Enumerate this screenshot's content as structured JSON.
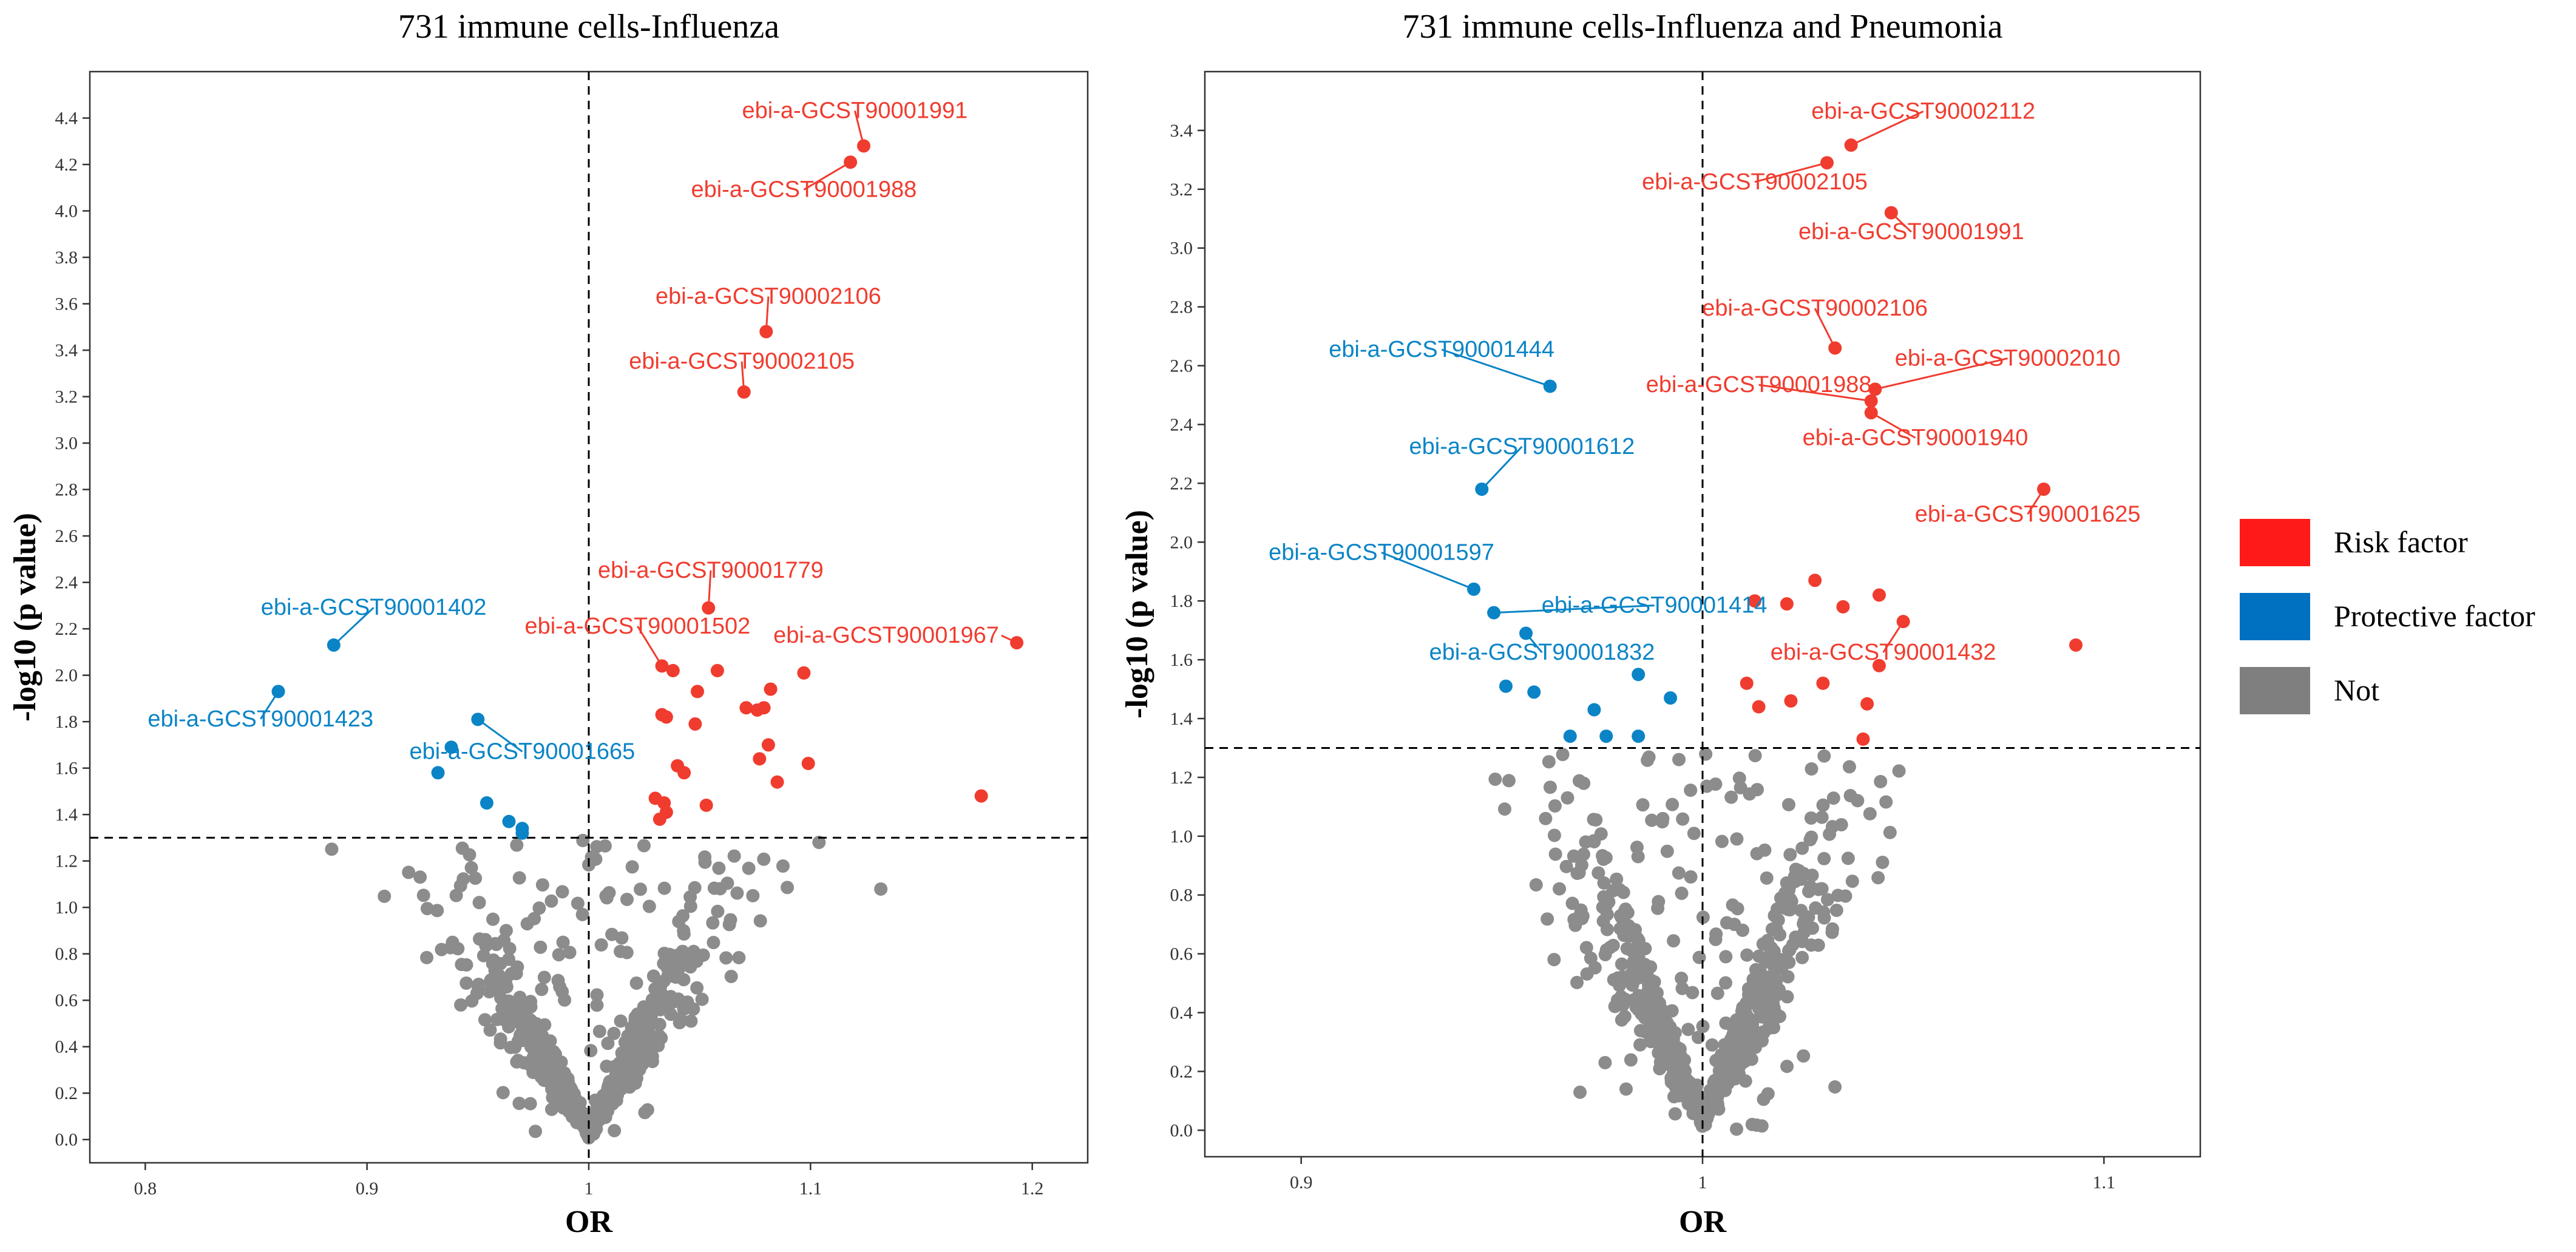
{
  "colors": {
    "risk": "#F03C2F",
    "protective": "#0A84C6",
    "not": "#8C8C8C",
    "legend_risk": "#FF1A1A",
    "legend_protective": "#0070C0",
    "legend_not": "#7F7F7F"
  },
  "legend": {
    "items": [
      {
        "label": "Risk factor",
        "color_key": "legend_risk"
      },
      {
        "label": "Protective factor",
        "color_key": "legend_protective"
      },
      {
        "label": "Not",
        "color_key": "legend_not"
      }
    ]
  },
  "chart_data": [
    {
      "type": "scatter",
      "title": "731 immune cells-Influenza",
      "xlabel": "OR",
      "ylabel": "-log10 (p value)",
      "xlim": [
        0.775,
        1.225
      ],
      "ylim": [
        -0.1,
        4.6
      ],
      "xticks": [
        0.8,
        0.9,
        1,
        1.1,
        1.2
      ],
      "xtick_labels": [
        "0.8",
        "0.9",
        "1",
        "1.1",
        "1.2"
      ],
      "yticks": [
        0.0,
        0.2,
        0.4,
        0.6,
        0.8,
        1.0,
        1.2,
        1.4,
        1.6,
        1.8,
        2.0,
        2.2,
        2.4,
        2.6,
        2.8,
        3.0,
        3.2,
        3.4,
        3.6,
        3.8,
        4.0,
        4.2,
        4.4
      ],
      "ytick_labels": [
        "0.0",
        "0.2",
        "0.4",
        "0.6",
        "0.8",
        "1.0",
        "1.2",
        "1.4",
        "1.6",
        "1.8",
        "2.0",
        "2.2",
        "2.4",
        "2.6",
        "2.8",
        "3.0",
        "3.2",
        "3.4",
        "3.6",
        "3.8",
        "4.0",
        "4.2",
        "4.4"
      ],
      "vline": 1,
      "hline": 1.3,
      "risk": [
        [
          1.124,
          4.28
        ],
        [
          1.118,
          4.21
        ],
        [
          1.08,
          3.48
        ],
        [
          1.07,
          3.22
        ],
        [
          1.054,
          2.29
        ],
        [
          1.193,
          2.14
        ],
        [
          1.033,
          2.04
        ],
        [
          1.038,
          2.02
        ],
        [
          1.058,
          2.02
        ],
        [
          1.097,
          2.01
        ],
        [
          1.082,
          1.94
        ],
        [
          1.049,
          1.93
        ],
        [
          1.071,
          1.86
        ],
        [
          1.076,
          1.85
        ],
        [
          1.079,
          1.86
        ],
        [
          1.033,
          1.83
        ],
        [
          1.035,
          1.82
        ],
        [
          1.048,
          1.79
        ],
        [
          1.081,
          1.7
        ],
        [
          1.099,
          1.62
        ],
        [
          1.077,
          1.64
        ],
        [
          1.04,
          1.61
        ],
        [
          1.043,
          1.58
        ],
        [
          1.085,
          1.54
        ],
        [
          1.03,
          1.47
        ],
        [
          1.034,
          1.45
        ],
        [
          1.053,
          1.44
        ],
        [
          1.035,
          1.41
        ],
        [
          1.032,
          1.38
        ],
        [
          1.177,
          1.48
        ]
      ],
      "protective": [
        [
          0.885,
          2.13
        ],
        [
          0.86,
          1.93
        ],
        [
          0.95,
          1.81
        ],
        [
          0.938,
          1.69
        ],
        [
          0.932,
          1.58
        ],
        [
          0.954,
          1.45
        ],
        [
          0.964,
          1.37
        ],
        [
          0.97,
          1.34
        ],
        [
          0.97,
          1.32
        ]
      ],
      "not_series_label": "Not",
      "labels": [
        {
          "text": "ebi-a-GCST90001991",
          "group": "risk",
          "x": 1.124,
          "y": 4.28,
          "lx": 1.12,
          "ly": 4.4,
          "anchor": "middle"
        },
        {
          "text": "ebi-a-GCST90001988",
          "group": "risk",
          "x": 1.118,
          "y": 4.21,
          "lx": 1.097,
          "ly": 4.06,
          "anchor": "middle"
        },
        {
          "text": "ebi-a-GCST90002106",
          "group": "risk",
          "x": 1.08,
          "y": 3.48,
          "lx": 1.081,
          "ly": 3.6,
          "anchor": "middle"
        },
        {
          "text": "ebi-a-GCST90002105",
          "group": "risk",
          "x": 1.07,
          "y": 3.22,
          "lx": 1.069,
          "ly": 3.32,
          "anchor": "middle"
        },
        {
          "text": "ebi-a-GCST90001779",
          "group": "risk",
          "x": 1.054,
          "y": 2.29,
          "lx": 1.055,
          "ly": 2.42,
          "anchor": "middle"
        },
        {
          "text": "ebi-a-GCST90001502",
          "group": "risk",
          "x": 1.033,
          "y": 2.04,
          "lx": 1.022,
          "ly": 2.18,
          "anchor": "middle"
        },
        {
          "text": "ebi-a-GCST90001967",
          "group": "risk",
          "x": 1.193,
          "y": 2.14,
          "lx": 1.185,
          "ly": 2.14,
          "anchor": "end"
        },
        {
          "text": "ebi-a-GCST90001402",
          "group": "protective",
          "x": 0.885,
          "y": 2.13,
          "lx": 0.903,
          "ly": 2.26,
          "anchor": "middle"
        },
        {
          "text": "ebi-a-GCST90001423",
          "group": "protective",
          "x": 0.86,
          "y": 1.93,
          "lx": 0.852,
          "ly": 1.78,
          "anchor": "middle"
        },
        {
          "text": "ebi-a-GCST90001665",
          "group": "protective",
          "x": 0.95,
          "y": 1.81,
          "lx": 0.97,
          "ly": 1.64,
          "anchor": "middle"
        }
      ]
    },
    {
      "type": "scatter",
      "title": "731 immune cells-Influenza and Pneumonia",
      "xlabel": "OR",
      "ylabel": "-log10 (p value)",
      "xlim": [
        0.876,
        1.124
      ],
      "ylim": [
        -0.09,
        3.6
      ],
      "xticks": [
        0.9,
        1,
        1.1
      ],
      "xtick_labels": [
        "0.9",
        "1",
        "1.1"
      ],
      "yticks": [
        0.0,
        0.2,
        0.4,
        0.6,
        0.8,
        1.0,
        1.2,
        1.4,
        1.6,
        1.8,
        2.0,
        2.2,
        2.4,
        2.6,
        2.8,
        3.0,
        3.2,
        3.4
      ],
      "ytick_labels": [
        "0.0",
        "0.2",
        "0.4",
        "0.6",
        "0.8",
        "1.0",
        "1.2",
        "1.4",
        "1.6",
        "1.8",
        "2.0",
        "2.2",
        "2.4",
        "2.6",
        "2.8",
        "3.0",
        "3.2",
        "3.4"
      ],
      "vline": 1,
      "hline": 1.3,
      "risk": [
        [
          1.037,
          3.35
        ],
        [
          1.031,
          3.29
        ],
        [
          1.047,
          3.12
        ],
        [
          1.033,
          2.66
        ],
        [
          1.043,
          2.52
        ],
        [
          1.042,
          2.48
        ],
        [
          1.042,
          2.44
        ],
        [
          1.085,
          2.18
        ],
        [
          1.013,
          1.8
        ],
        [
          1.021,
          1.79
        ],
        [
          1.028,
          1.87
        ],
        [
          1.035,
          1.78
        ],
        [
          1.044,
          1.82
        ],
        [
          1.05,
          1.73
        ],
        [
          1.093,
          1.65
        ],
        [
          1.044,
          1.58
        ],
        [
          1.011,
          1.52
        ],
        [
          1.03,
          1.52
        ],
        [
          1.041,
          1.45
        ],
        [
          1.014,
          1.44
        ],
        [
          1.022,
          1.46
        ],
        [
          1.04,
          1.33
        ]
      ],
      "protective": [
        [
          0.962,
          2.53
        ],
        [
          0.945,
          2.18
        ],
        [
          0.943,
          1.84
        ],
        [
          0.948,
          1.76
        ],
        [
          0.956,
          1.69
        ],
        [
          0.984,
          1.55
        ],
        [
          0.951,
          1.51
        ],
        [
          0.958,
          1.49
        ],
        [
          0.992,
          1.47
        ],
        [
          0.973,
          1.43
        ],
        [
          0.967,
          1.34
        ],
        [
          0.976,
          1.34
        ],
        [
          0.984,
          1.34
        ]
      ],
      "not_series_label": "Not",
      "labels": [
        {
          "text": "ebi-a-GCST90002112",
          "group": "risk",
          "x": 1.037,
          "y": 3.35,
          "lx": 1.055,
          "ly": 3.44,
          "anchor": "middle"
        },
        {
          "text": "ebi-a-GCST90002105",
          "group": "risk",
          "x": 1.031,
          "y": 3.29,
          "lx": 1.013,
          "ly": 3.2,
          "anchor": "middle"
        },
        {
          "text": "ebi-a-GCST90001991",
          "group": "risk",
          "x": 1.047,
          "y": 3.12,
          "lx": 1.052,
          "ly": 3.03,
          "anchor": "middle"
        },
        {
          "text": "ebi-a-GCST90002106",
          "group": "risk",
          "x": 1.033,
          "y": 2.66,
          "lx": 1.028,
          "ly": 2.77,
          "anchor": "middle"
        },
        {
          "text": "ebi-a-GCST90002010",
          "group": "risk",
          "x": 1.043,
          "y": 2.52,
          "lx": 1.076,
          "ly": 2.6,
          "anchor": "middle"
        },
        {
          "text": "ebi-a-GCST90001988",
          "group": "risk",
          "x": 1.042,
          "y": 2.48,
          "lx": 1.014,
          "ly": 2.51,
          "anchor": "middle"
        },
        {
          "text": "ebi-a-GCST90001940",
          "group": "risk",
          "x": 1.042,
          "y": 2.44,
          "lx": 1.053,
          "ly": 2.33,
          "anchor": "middle"
        },
        {
          "text": "ebi-a-GCST90001625",
          "group": "risk",
          "x": 1.085,
          "y": 2.18,
          "lx": 1.081,
          "ly": 2.07,
          "anchor": "middle"
        },
        {
          "text": "ebi-a-GCST90001432",
          "group": "risk",
          "x": 1.05,
          "y": 1.73,
          "lx": 1.045,
          "ly": 1.6,
          "anchor": "middle"
        },
        {
          "text": "ebi-a-GCST90001444",
          "group": "protective",
          "x": 0.962,
          "y": 2.53,
          "lx": 0.935,
          "ly": 2.63,
          "anchor": "middle"
        },
        {
          "text": "ebi-a-GCST90001612",
          "group": "protective",
          "x": 0.945,
          "y": 2.18,
          "lx": 0.955,
          "ly": 2.3,
          "anchor": "middle"
        },
        {
          "text": "ebi-a-GCST90001597",
          "group": "protective",
          "x": 0.943,
          "y": 1.84,
          "lx": 0.92,
          "ly": 1.94,
          "anchor": "middle"
        },
        {
          "text": "ebi-a-GCST90001414",
          "group": "protective",
          "x": 0.948,
          "y": 1.76,
          "lx": 0.988,
          "ly": 1.76,
          "anchor": "middle"
        },
        {
          "text": "ebi-a-GCST90001832",
          "group": "protective",
          "x": 0.956,
          "y": 1.69,
          "lx": 0.96,
          "ly": 1.6,
          "anchor": "middle"
        }
      ]
    }
  ]
}
